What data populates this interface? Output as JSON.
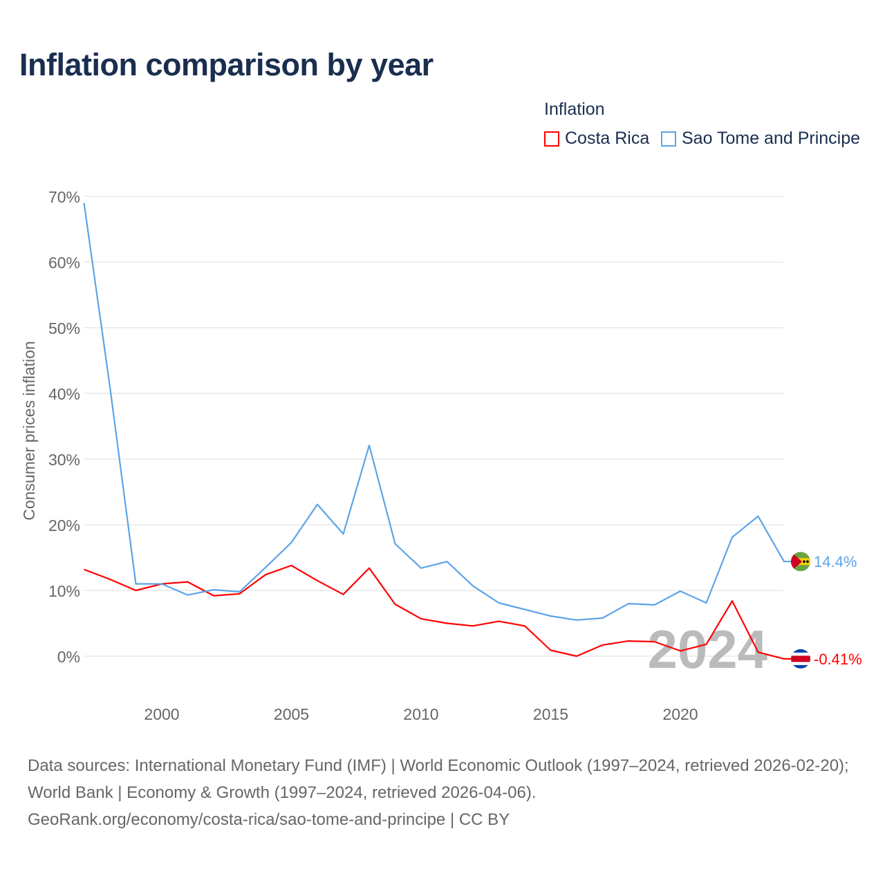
{
  "title": "Inflation comparison by year",
  "legend": {
    "title": "Inflation",
    "items": [
      {
        "name": "Costa Rica",
        "color": "#ff0000"
      },
      {
        "name": "Sao Tome and Principe",
        "color": "#5ba4e8"
      }
    ]
  },
  "chart_data": {
    "type": "line",
    "title": "Inflation comparison by year",
    "xlabel": "",
    "ylabel": "Consumer prices inflation",
    "xlim": [
      1997,
      2024
    ],
    "ylim": [
      -5,
      70
    ],
    "x_ticks": [
      2000,
      2005,
      2010,
      2015,
      2020
    ],
    "y_ticks": [
      0,
      10,
      20,
      30,
      40,
      50,
      60,
      70
    ],
    "y_tick_labels": [
      "0%",
      "10%",
      "20%",
      "30%",
      "40%",
      "50%",
      "60%",
      "70%"
    ],
    "grid": true,
    "legend_position": "top-right",
    "x": [
      1997,
      1998,
      1999,
      2000,
      2001,
      2002,
      2003,
      2004,
      2005,
      2006,
      2007,
      2008,
      2009,
      2010,
      2011,
      2012,
      2013,
      2014,
      2015,
      2016,
      2017,
      2018,
      2019,
      2020,
      2021,
      2022,
      2023,
      2024
    ],
    "series": [
      {
        "name": "Costa Rica",
        "color": "#ff0000",
        "end_label": "-0.41%",
        "values": [
          13.2,
          11.7,
          10.0,
          11.0,
          11.3,
          9.2,
          9.5,
          12.4,
          13.8,
          11.5,
          9.4,
          13.4,
          7.9,
          5.7,
          5.0,
          4.6,
          5.3,
          4.6,
          0.9,
          0.0,
          1.7,
          2.3,
          2.2,
          0.8,
          1.8,
          8.4,
          0.6,
          -0.41
        ]
      },
      {
        "name": "Sao Tome and Principe",
        "color": "#5ba4e8",
        "end_label": "14.4%",
        "values": [
          69.0,
          41.0,
          11.0,
          11.0,
          9.3,
          10.1,
          9.8,
          13.5,
          17.3,
          23.1,
          18.6,
          32.1,
          17.1,
          13.4,
          14.4,
          10.7,
          8.1,
          7.1,
          6.1,
          5.5,
          5.8,
          8.0,
          7.8,
          9.9,
          8.1,
          18.1,
          21.3,
          14.4
        ]
      }
    ],
    "annotations": [
      "2024"
    ]
  },
  "footer": {
    "line1": "Data sources: International Monetary Fund (IMF) | World Economic Outlook (1997–2024, retrieved 2026-02-20); World Bank | Economy & Growth (1997–2024, retrieved 2026-04-06).",
    "line2": "GeoRank.org/economy/costa-rica/sao-tome-and-principe | CC BY"
  }
}
